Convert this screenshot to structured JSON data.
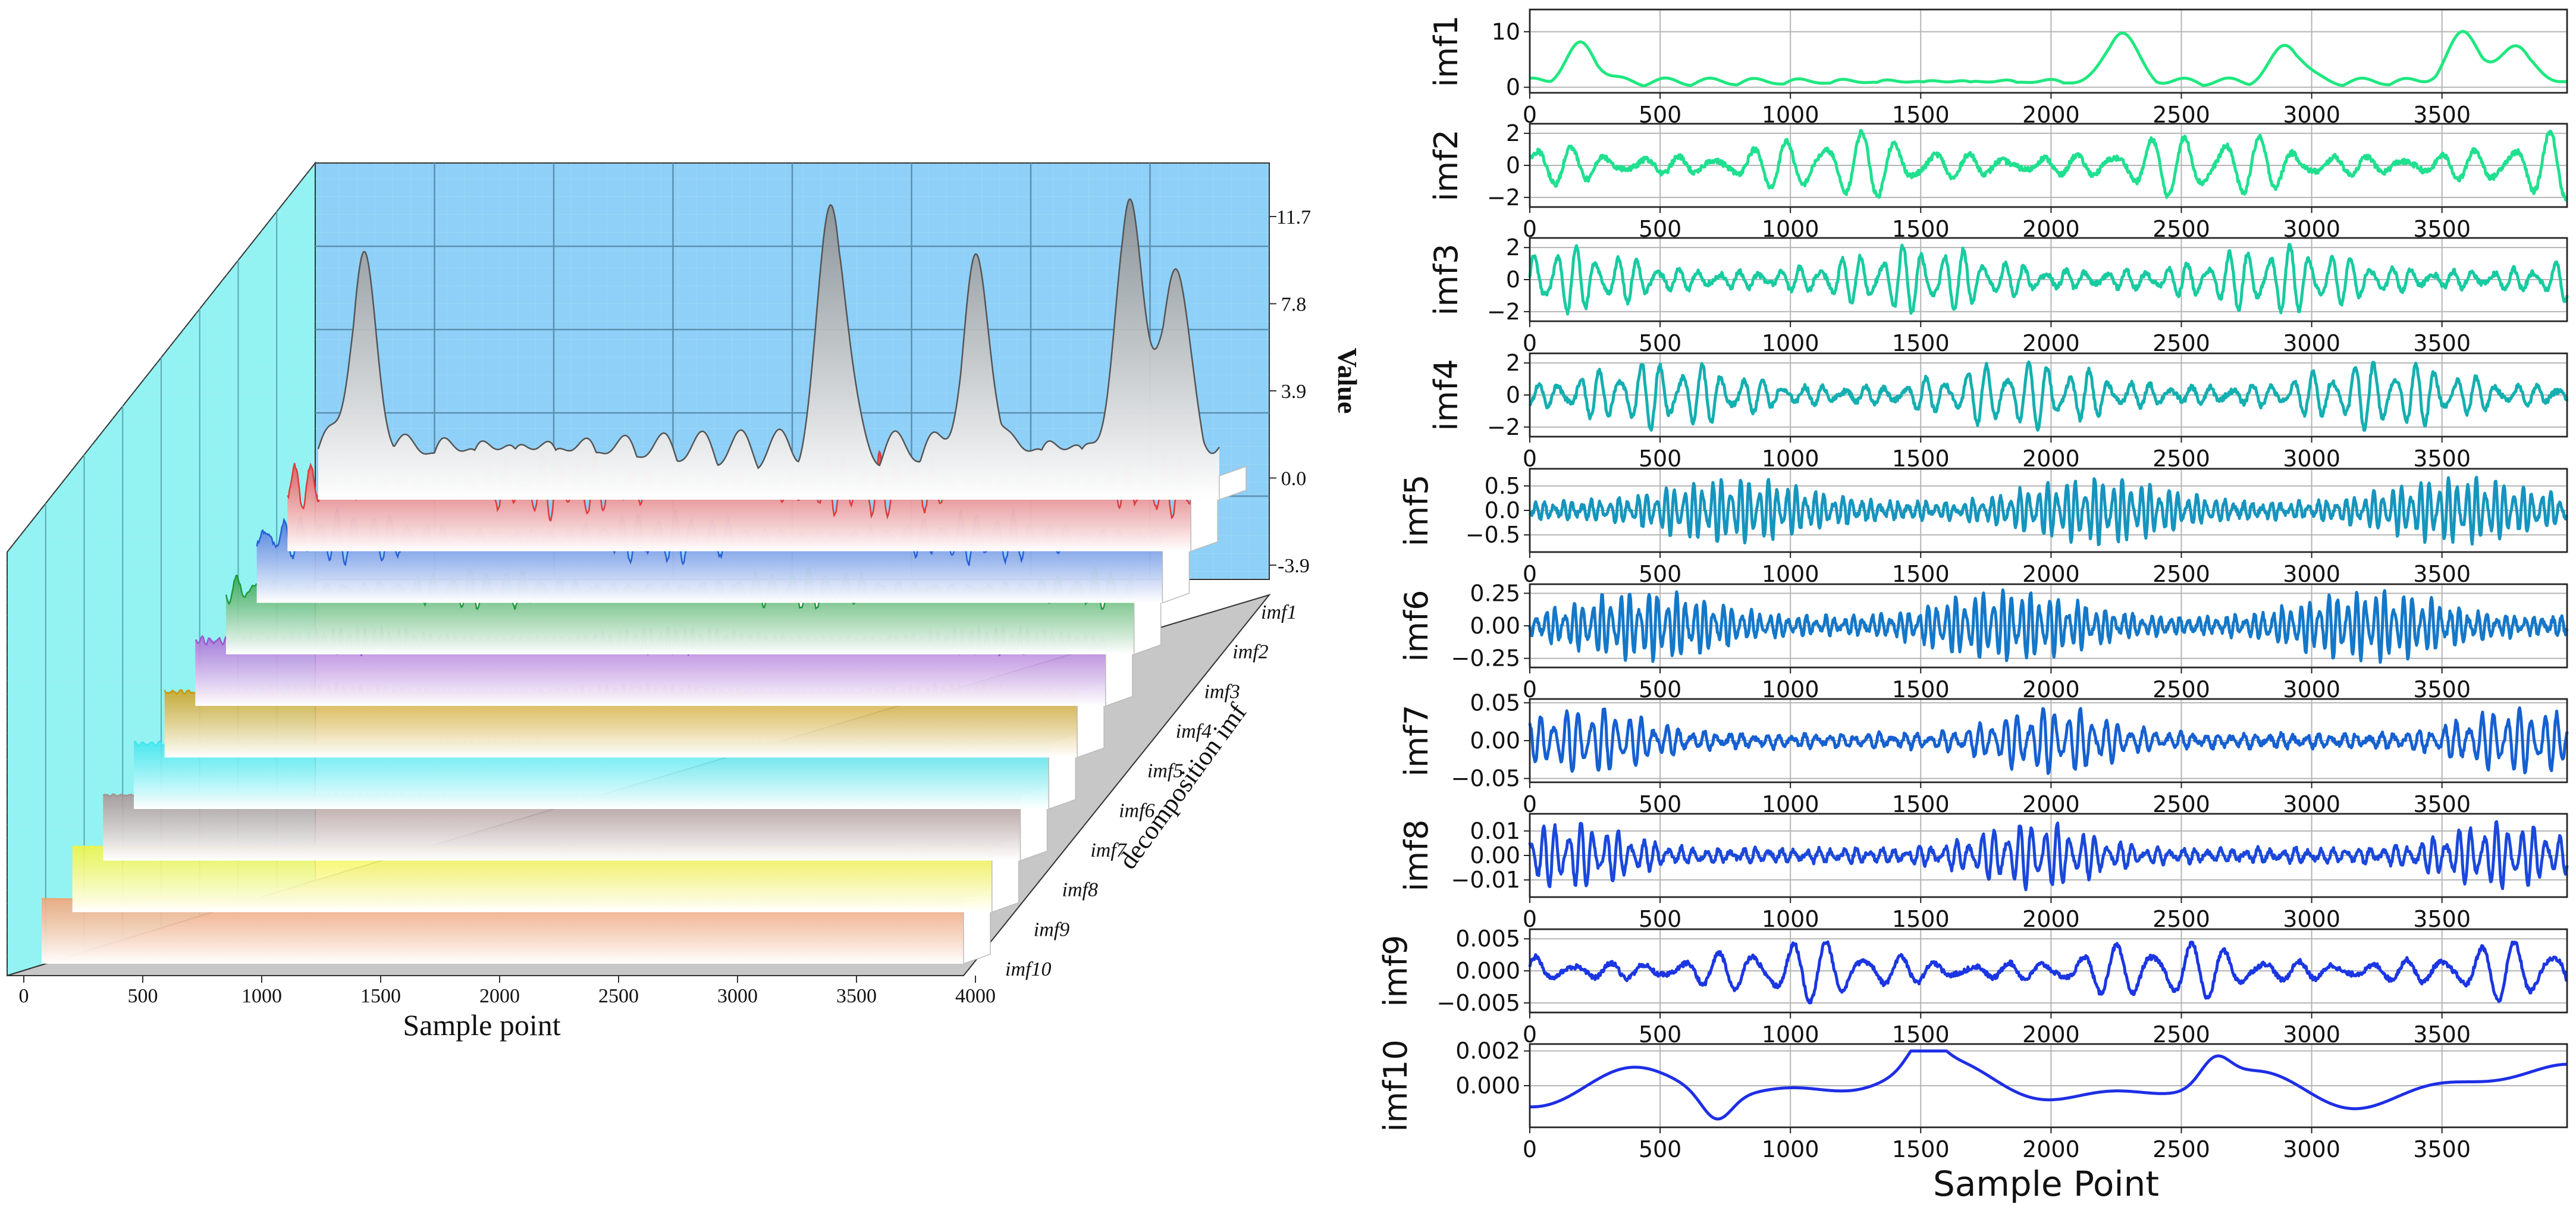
{
  "chart_data": [
    {
      "type": "area",
      "panel": "3d-waterfall",
      "title": "",
      "xlabel": "Sample point",
      "ylabel": "Value",
      "zlabel": "decomposition imf",
      "xlim": [
        0,
        4000
      ],
      "x_ticks": [
        "0",
        "500",
        "1000",
        "1500",
        "2000",
        "2500",
        "3000",
        "3500",
        "4000"
      ],
      "z_ticks": [
        "11.7",
        "7.8",
        "3.9",
        "0.0",
        "-3.9"
      ],
      "z_tick_values": [
        11.7,
        7.8,
        3.9,
        0.0,
        -3.9
      ],
      "grid": true,
      "series": [
        {
          "name": "imf1",
          "color": "#8a8a8a",
          "amplitude": 12
        },
        {
          "name": "imf2",
          "color": "#e23a3a",
          "amplitude": 2.2
        },
        {
          "name": "imf3",
          "color": "#2a5fd6",
          "amplitude": 2.2
        },
        {
          "name": "imf4",
          "color": "#1e9a3e",
          "amplitude": 2.2
        },
        {
          "name": "imf5",
          "color": "#9a55d0",
          "amplitude": 0.75
        },
        {
          "name": "imf6",
          "color": "#c8980a",
          "amplitude": 0.3
        },
        {
          "name": "imf7",
          "color": "#3fe6ee",
          "amplitude": 0.05
        },
        {
          "name": "imf8",
          "color": "#a89090",
          "amplitude": 0.015
        },
        {
          "name": "imf9",
          "color": "#f4f43c",
          "amplitude": 0.005
        },
        {
          "name": "imf10",
          "color": "#f4a070",
          "amplitude": 0.002
        }
      ]
    },
    {
      "type": "line",
      "panel": "imf-stack",
      "title": "",
      "xlabel": "Sample Point",
      "xlim": [
        0,
        4000
      ],
      "x_ticks": [
        0,
        500,
        1000,
        1500,
        2000,
        2500,
        3000,
        3500
      ],
      "grid": true,
      "series": [
        {
          "name": "imf1",
          "color": "#1fe87f",
          "yticks": [
            "10",
            "0"
          ],
          "ytick_values": [
            10,
            0
          ],
          "ylim": [
            -1,
            14
          ],
          "amplitude": 12,
          "kind": "peaks"
        },
        {
          "name": "imf2",
          "color": "#1fe08f",
          "yticks": [
            "2",
            "0",
            "−2"
          ],
          "ytick_values": [
            2,
            0,
            -2
          ],
          "ylim": [
            -2.6,
            2.6
          ],
          "amplitude": 2.2,
          "kind": "wave"
        },
        {
          "name": "imf3",
          "color": "#17cba0",
          "yticks": [
            "2",
            "0",
            "−2"
          ],
          "ytick_values": [
            2,
            0,
            -2
          ],
          "ylim": [
            -2.6,
            2.6
          ],
          "amplitude": 2.2,
          "kind": "burst"
        },
        {
          "name": "imf4",
          "color": "#14afb0",
          "yticks": [
            "2",
            "0",
            "−2"
          ],
          "ytick_values": [
            2,
            0,
            -2
          ],
          "ylim": [
            -2.6,
            2.6
          ],
          "amplitude": 2.2,
          "kind": "burst"
        },
        {
          "name": "imf5",
          "color": "#1595be",
          "yticks": [
            "0.5",
            "0.0",
            "−0.5"
          ],
          "ytick_values": [
            0.5,
            0,
            -0.5
          ],
          "ylim": [
            -0.85,
            0.85
          ],
          "amplitude": 0.7,
          "kind": "dense"
        },
        {
          "name": "imf6",
          "color": "#1478c9",
          "yticks": [
            "0.25",
            "0.00",
            "−0.25"
          ],
          "ytick_values": [
            0.25,
            0,
            -0.25
          ],
          "ylim": [
            -0.32,
            0.32
          ],
          "amplitude": 0.28,
          "kind": "dense"
        },
        {
          "name": "imf7",
          "color": "#1560d2",
          "yticks": [
            "0.05",
            "0.00",
            "−0.05"
          ],
          "ytick_values": [
            0.05,
            0,
            -0.05
          ],
          "ylim": [
            -0.055,
            0.055
          ],
          "amplitude": 0.045,
          "kind": "spike"
        },
        {
          "name": "imf8",
          "color": "#1a48dc",
          "yticks": [
            "0.01",
            "0.00",
            "−0.01"
          ],
          "ytick_values": [
            0.01,
            0,
            -0.01
          ],
          "ylim": [
            -0.017,
            0.017
          ],
          "amplitude": 0.014,
          "kind": "spike"
        },
        {
          "name": "imf9",
          "color": "#1b36e2",
          "yticks": [
            "0.005",
            "0.000",
            "−0.005"
          ],
          "ytick_values": [
            0.005,
            0,
            -0.005
          ],
          "ylim": [
            -0.0065,
            0.0065
          ],
          "amplitude": 0.005,
          "kind": "wave"
        },
        {
          "name": "imf10",
          "color": "#1e2ee6",
          "yticks": [
            "0.002",
            "0.000"
          ],
          "ytick_values": [
            0.002,
            0
          ],
          "ylim": [
            -0.0024,
            0.0024
          ],
          "amplitude": 0.002,
          "kind": "slow"
        }
      ]
    }
  ]
}
